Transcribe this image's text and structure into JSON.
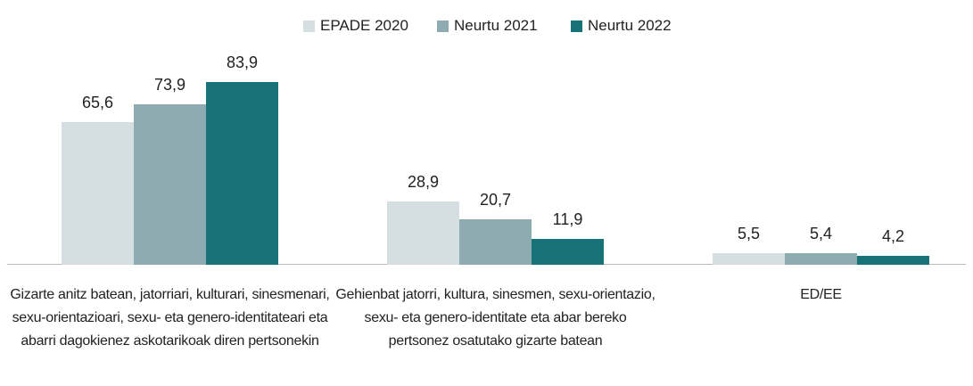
{
  "chart_data": {
    "type": "bar",
    "categories": [
      "Gizarte anitz batean, jatorriari, kulturari, sinesmenari, sexu-orientazioari, sexu- eta genero-identitateari eta abarri dagokienez askotarikoak diren pertsonekin",
      "Gehienbat jatorri, kultura, sinesmen, sexu-orientazio, sexu- eta genero-identitate eta abar bereko pertsonez osatutako gizarte batean",
      "ED/EE"
    ],
    "series": [
      {
        "name": "EPADE 2020",
        "color": "#d5dfe2",
        "values": [
          65.6,
          28.9,
          5.5
        ],
        "value_labels": [
          "65,6",
          "28,9",
          "5,5"
        ]
      },
      {
        "name": "Neurtu 2021",
        "color": "#8fabb2",
        "values": [
          73.9,
          20.7,
          5.4
        ],
        "value_labels": [
          "73,9",
          "20,7",
          "5,4"
        ]
      },
      {
        "name": "Neurtu 2022",
        "color": "#177278",
        "values": [
          83.9,
          11.9,
          4.2
        ],
        "value_labels": [
          "83,9",
          "11,9",
          "4,2"
        ]
      }
    ],
    "legend": "top"
  }
}
